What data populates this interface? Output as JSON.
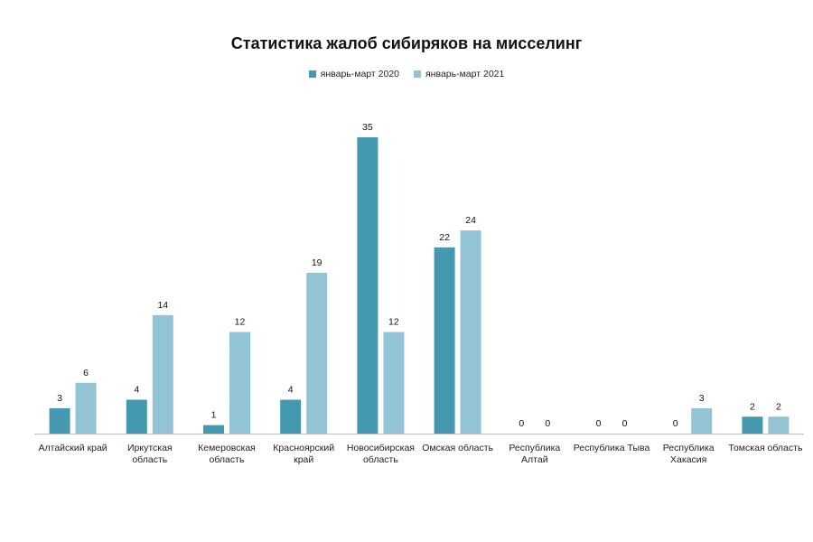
{
  "chart_data": {
    "type": "bar",
    "title": "Статистика жалоб сибиряков на мисселинг",
    "xlabel": "",
    "ylabel": "",
    "categories": [
      [
        "Алтайский край"
      ],
      [
        "Иркутская",
        "область"
      ],
      [
        "Кемеровская",
        "область"
      ],
      [
        "Красноярский",
        "край"
      ],
      [
        "Новосибирская",
        "область"
      ],
      [
        "Омская область"
      ],
      [
        "Республика",
        "Алтай"
      ],
      [
        "Республика Тыва"
      ],
      [
        "Республика",
        "Хакасия"
      ],
      [
        "Томская область"
      ]
    ],
    "series": [
      {
        "name": "январь-март 2020",
        "color": "#4499b0",
        "values": [
          3,
          4,
          1,
          4,
          35,
          22,
          0,
          0,
          0,
          2
        ]
      },
      {
        "name": "январь-март 2021",
        "color": "#93c4d5",
        "values": [
          6,
          14,
          12,
          19,
          12,
          24,
          0,
          0,
          3,
          2
        ]
      }
    ],
    "ylim": [
      0,
      35
    ],
    "grid": false,
    "legend_position": "top",
    "data_labels": true
  }
}
